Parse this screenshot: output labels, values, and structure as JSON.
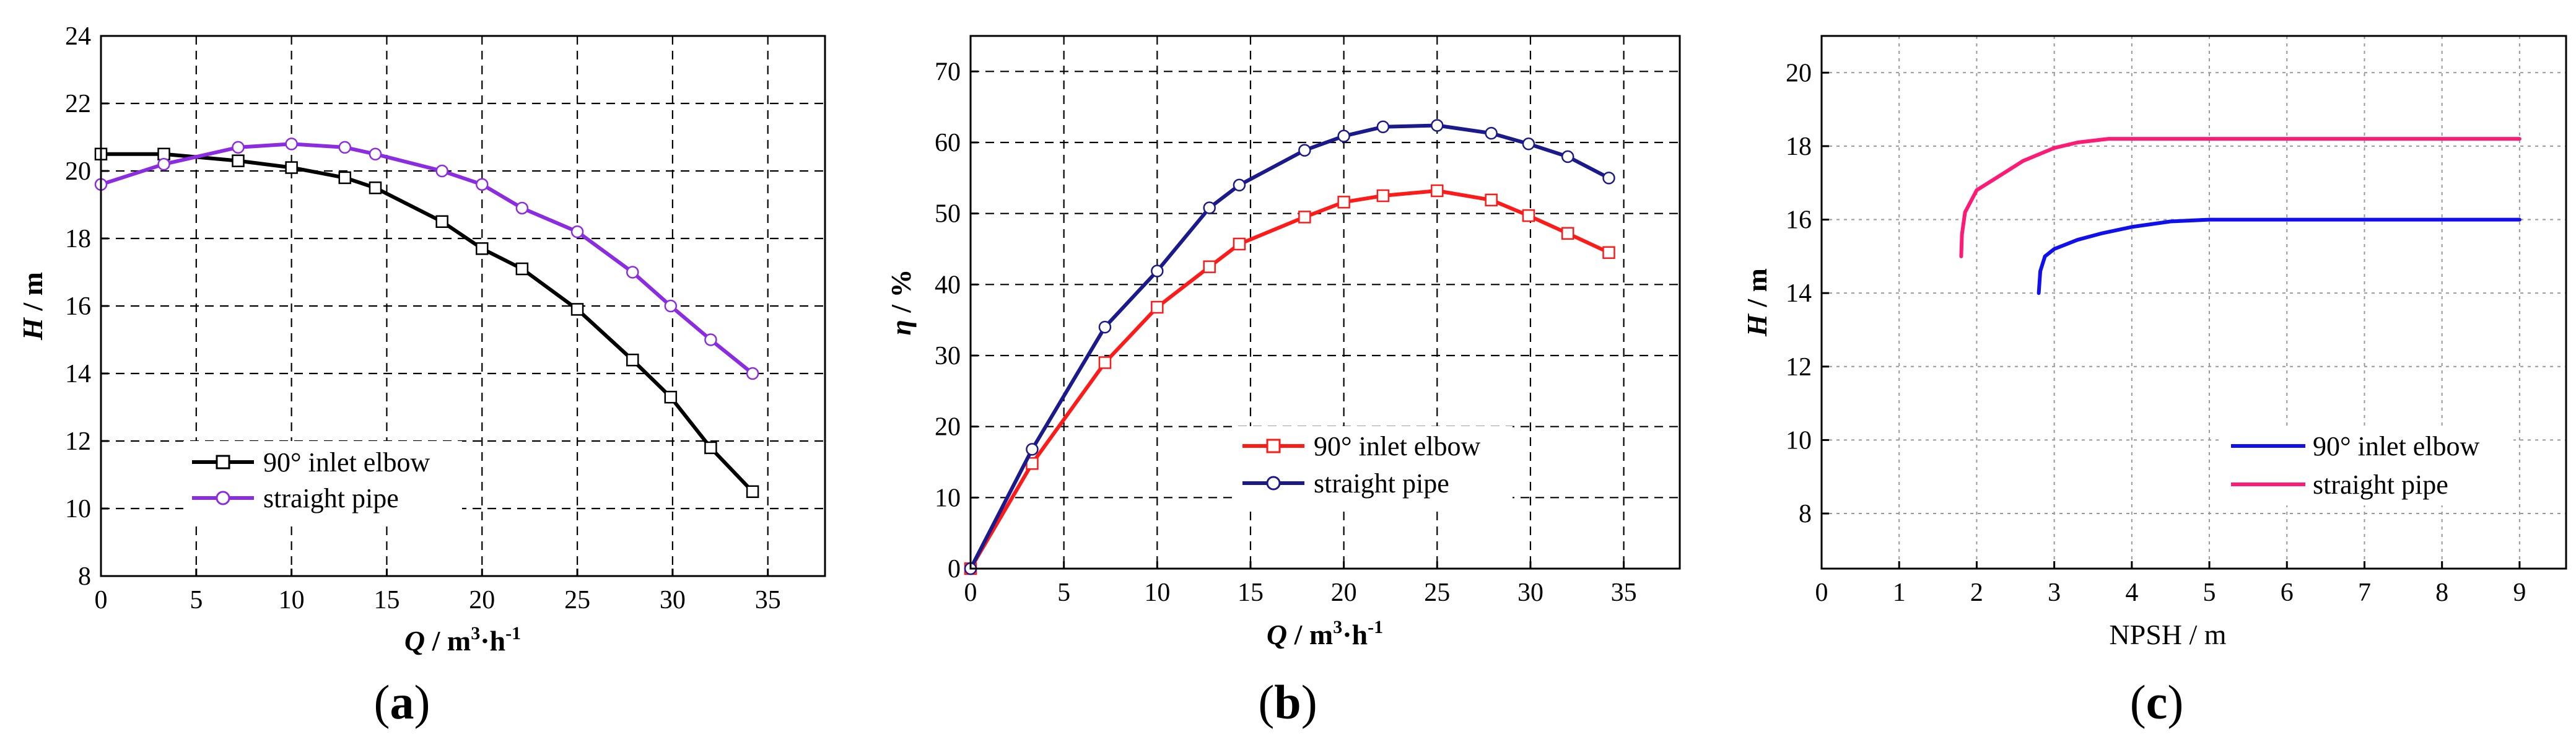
{
  "chart_data": [
    {
      "id": "a",
      "type": "line",
      "panel_label": "a",
      "xlabel": "Q / m³·h⁻¹",
      "xlabel_parts": {
        "sym": "Q",
        "unit": " / m",
        "sup1": "3",
        "mid": "·h",
        "sup2": "-1"
      },
      "ylabel": "H / m",
      "ylabel_parts": {
        "sym": "H",
        "unit": " / m"
      },
      "xlim": [
        0,
        38
      ],
      "ylim": [
        8,
        24
      ],
      "xticks": [
        0,
        5,
        10,
        15,
        20,
        25,
        30,
        35
      ],
      "yticks": [
        8,
        10,
        12,
        14,
        16,
        18,
        20,
        22,
        24
      ],
      "grid": true,
      "legend_position": "bottom-left",
      "series": [
        {
          "name": "90° inlet elbow",
          "color": "#000000",
          "marker": "square",
          "x": [
            0,
            3.3,
            7.2,
            10,
            12.8,
            14.4,
            17.9,
            20,
            22.1,
            25,
            27.9,
            29.9,
            32,
            34.2
          ],
          "y": [
            20.5,
            20.5,
            20.3,
            20.1,
            19.8,
            19.5,
            18.5,
            17.7,
            17.1,
            15.9,
            14.4,
            13.3,
            11.8,
            10.5
          ]
        },
        {
          "name": "straight pipe",
          "color": "#8b2be2",
          "marker": "circle",
          "x": [
            0,
            3.3,
            7.2,
            10,
            12.8,
            14.4,
            17.9,
            20,
            22.1,
            25,
            27.9,
            29.9,
            32,
            34.2
          ],
          "y": [
            19.6,
            20.2,
            20.7,
            20.8,
            20.7,
            20.5,
            20.0,
            19.6,
            18.9,
            18.2,
            17.0,
            16.0,
            15.0,
            14.0
          ]
        }
      ]
    },
    {
      "id": "b",
      "type": "line",
      "panel_label": "b",
      "xlabel": "Q / m³·h⁻¹",
      "xlabel_parts": {
        "sym": "Q",
        "unit": " / m",
        "sup1": "3",
        "mid": "·h",
        "sup2": "-1"
      },
      "ylabel": "η / %",
      "ylabel_parts": {
        "sym": "η",
        "unit": " / %"
      },
      "xlim": [
        0,
        38
      ],
      "ylim": [
        0,
        75
      ],
      "xticks": [
        0,
        5,
        10,
        15,
        20,
        25,
        30,
        35
      ],
      "yticks": [
        0,
        10,
        20,
        30,
        40,
        50,
        60,
        70
      ],
      "grid": true,
      "legend_position": "center-right",
      "series": [
        {
          "name": "90° inlet elbow",
          "color": "#ff1a1a",
          "marker": "square",
          "x": [
            0,
            3.3,
            7.2,
            10,
            12.8,
            14.4,
            17.9,
            20,
            22.1,
            25,
            27.9,
            29.9,
            32,
            34.2
          ],
          "y": [
            0,
            14.8,
            29.0,
            36.8,
            42.5,
            45.7,
            49.5,
            51.6,
            52.5,
            53.2,
            51.9,
            49.7,
            47.2,
            44.5
          ]
        },
        {
          "name": "straight pipe",
          "color": "#1a1a8c",
          "marker": "circle",
          "x": [
            0,
            3.3,
            7.2,
            10,
            12.8,
            14.4,
            17.9,
            20,
            22.1,
            25,
            27.9,
            29.9,
            32,
            34.2
          ],
          "y": [
            0,
            16.8,
            34.0,
            41.9,
            50.8,
            54.0,
            58.9,
            60.9,
            62.2,
            62.4,
            61.3,
            59.8,
            58.0,
            55.0
          ]
        }
      ]
    },
    {
      "id": "c",
      "type": "line",
      "panel_label": "c",
      "xlabel": "NPSH / m",
      "ylabel": "H / m",
      "ylabel_parts": {
        "sym": "H",
        "unit": " / m"
      },
      "xlim": [
        0,
        9.6
      ],
      "ylim": [
        6.5,
        21
      ],
      "xticks": [
        0,
        1,
        2,
        3,
        4,
        5,
        6,
        7,
        8,
        9
      ],
      "yticks": [
        8,
        10,
        12,
        14,
        16,
        18,
        20
      ],
      "grid": true,
      "legend_position": "bottom-right",
      "series": [
        {
          "name": "90° inlet elbow",
          "color": "#1010ee",
          "marker": "none",
          "x": [
            2.8,
            2.82,
            2.88,
            3.0,
            3.3,
            3.6,
            4.0,
            4.5,
            5.0,
            6.0,
            7.0,
            8.0,
            9.0
          ],
          "y": [
            14.0,
            14.6,
            15.0,
            15.2,
            15.45,
            15.62,
            15.8,
            15.95,
            16.0,
            16.0,
            16.0,
            16.0,
            16.0
          ]
        },
        {
          "name": "straight pipe",
          "color": "#ff1a75",
          "marker": "none",
          "x": [
            1.8,
            1.81,
            1.85,
            2.0,
            2.3,
            2.6,
            3.0,
            3.3,
            3.7,
            4.2,
            5.0,
            6.0,
            7.0,
            8.0,
            9.0
          ],
          "y": [
            15.0,
            15.6,
            16.2,
            16.8,
            17.2,
            17.6,
            17.95,
            18.1,
            18.2,
            18.2,
            18.2,
            18.2,
            18.2,
            18.2,
            18.2
          ]
        }
      ]
    }
  ]
}
